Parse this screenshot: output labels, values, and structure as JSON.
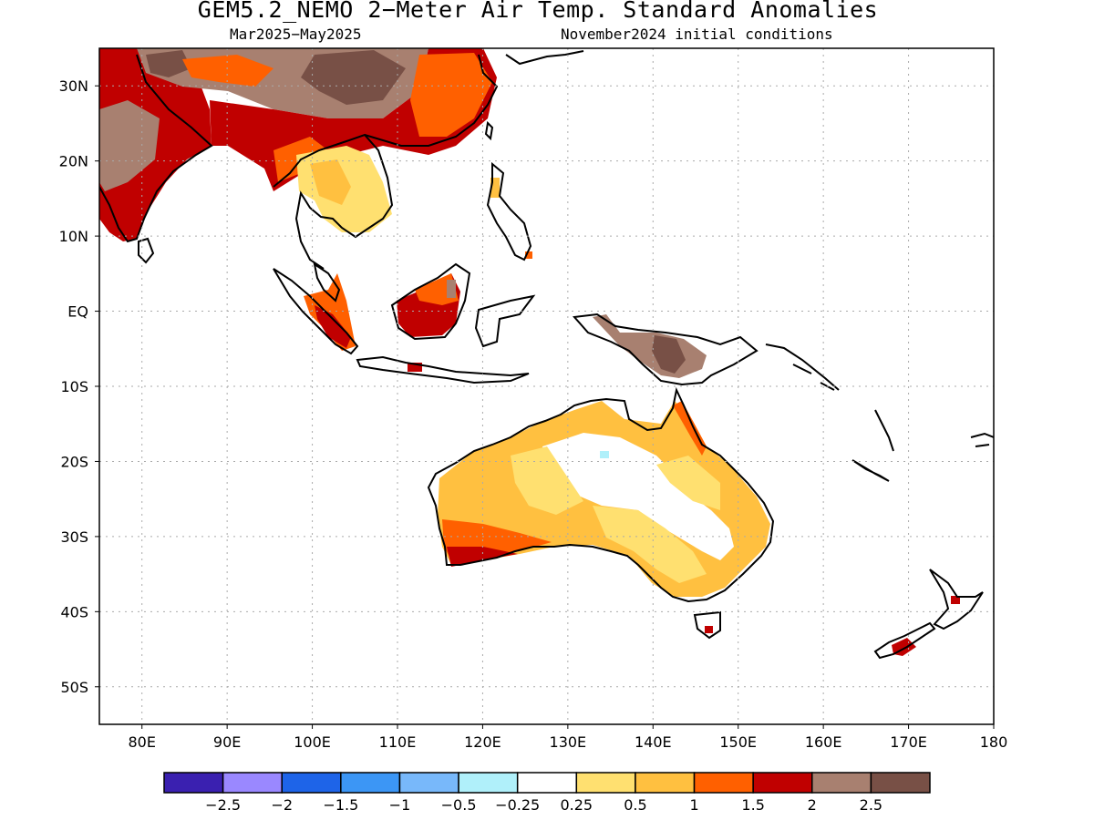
{
  "header": {
    "title": "GEM5.2_NEMO 2−Meter Air Temp. Standard Anomalies",
    "period": "Mar2025−May2025",
    "init": "November2024 initial conditions"
  },
  "map": {
    "projection": "equirectangular",
    "lon_range": [
      75,
      180
    ],
    "lat_range": [
      -55,
      35
    ],
    "grid": "dotted",
    "lat_labels": [
      {
        "lat": 30,
        "text": "30N"
      },
      {
        "lat": 20,
        "text": "20N"
      },
      {
        "lat": 10,
        "text": "10N"
      },
      {
        "lat": 0,
        "text": "EQ"
      },
      {
        "lat": -10,
        "text": "10S"
      },
      {
        "lat": -20,
        "text": "20S"
      },
      {
        "lat": -30,
        "text": "30S"
      },
      {
        "lat": -40,
        "text": "40S"
      },
      {
        "lat": -50,
        "text": "50S"
      }
    ],
    "lon_labels": [
      {
        "lon": 80,
        "text": "80E"
      },
      {
        "lon": 90,
        "text": "90E"
      },
      {
        "lon": 100,
        "text": "100E"
      },
      {
        "lon": 110,
        "text": "110E"
      },
      {
        "lon": 120,
        "text": "120E"
      },
      {
        "lon": 130,
        "text": "130E"
      },
      {
        "lon": 140,
        "text": "140E"
      },
      {
        "lon": 150,
        "text": "150E"
      },
      {
        "lon": 160,
        "text": "160E"
      },
      {
        "lon": 170,
        "text": "170E"
      },
      {
        "lon": 180,
        "text": "180"
      }
    ],
    "regions": [
      {
        "name": "south-asia",
        "color": "#c00000"
      },
      {
        "name": "tibet",
        "color": "#a88070"
      },
      {
        "name": "china",
        "color": "#c00000"
      },
      {
        "name": "indochina",
        "color": "#ffe070"
      },
      {
        "name": "borneo",
        "color": "#c00000"
      },
      {
        "name": "sumatra",
        "color": "#ff6000"
      },
      {
        "name": "new-guinea",
        "color": "#a88070"
      },
      {
        "name": "australia",
        "color": "#ffc040"
      },
      {
        "name": "australia-interior",
        "color": "#ffffff"
      },
      {
        "name": "sw-australia",
        "color": "#c00000"
      },
      {
        "name": "new-zealand",
        "color": "#c00000"
      }
    ]
  },
  "colorbar": {
    "colors": [
      "#3a20b0",
      "#9a88ff",
      "#1e64e8",
      "#3c96f5",
      "#78b8fa",
      "#b0f0fa",
      "#ffffff",
      "#ffe070",
      "#ffc040",
      "#ff6000",
      "#c00000",
      "#a88070",
      "#785046"
    ],
    "labels": [
      "−2.5",
      "−2",
      "−1.5",
      "−1",
      "−0.5",
      "−0.25",
      "0.25",
      "0.5",
      "1",
      "1.5",
      "2",
      "2.5"
    ]
  }
}
